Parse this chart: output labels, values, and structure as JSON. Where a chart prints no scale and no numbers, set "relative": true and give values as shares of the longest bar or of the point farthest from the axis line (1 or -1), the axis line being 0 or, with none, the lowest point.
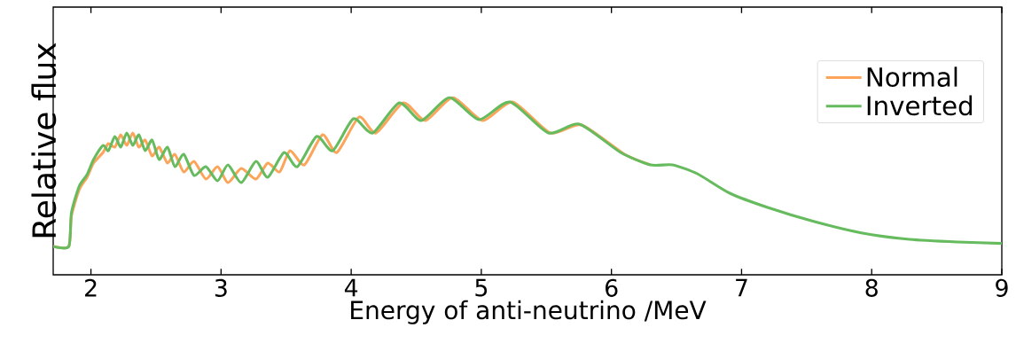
{
  "chart_data": {
    "type": "line",
    "relative": true,
    "xlabel": "Energy of anti-neutrino /MeV",
    "ylabel": "Relative flux",
    "xlim": [
      1.71,
      9
    ],
    "xticks": [
      2,
      3,
      4,
      5,
      6,
      7,
      8,
      9
    ],
    "tick_labels": "x",
    "legend": "top right",
    "marker": "none",
    "line_style": "solid",
    "grid": false,
    "series": [
      {
        "name": "Normal",
        "color": "#fca55a",
        "x": [
          1.71,
          1.83,
          1.85,
          1.91,
          1.97,
          2.02,
          2.093,
          2.134,
          2.184,
          2.229,
          2.275,
          2.322,
          2.368,
          2.417,
          2.47,
          2.524,
          2.588,
          2.645,
          2.713,
          2.792,
          2.883,
          2.973,
          3.053,
          3.155,
          3.268,
          3.359,
          3.45,
          3.53,
          3.64,
          3.78,
          3.89,
          4.06,
          4.19,
          4.4,
          4.57,
          4.78,
          5.01,
          5.24,
          5.53,
          5.77,
          6.1,
          6.3
        ],
        "values": [
          0.16,
          0.16,
          0.33,
          0.48,
          0.55,
          0.63,
          0.69,
          0.74,
          0.72,
          0.79,
          0.73,
          0.8,
          0.72,
          0.76,
          0.67,
          0.72,
          0.63,
          0.68,
          0.58,
          0.64,
          0.54,
          0.61,
          0.52,
          0.6,
          0.54,
          0.63,
          0.58,
          0.7,
          0.62,
          0.79,
          0.69,
          0.89,
          0.8,
          0.97,
          0.87,
          1.0,
          0.87,
          0.975,
          0.8,
          0.845,
          0.68,
          0.62
        ]
      },
      {
        "name": "Inverted",
        "color": "#66bb5e",
        "x": [
          1.71,
          1.83,
          1.85,
          1.91,
          1.97,
          2.02,
          2.093,
          2.134,
          2.184,
          2.229,
          2.275,
          2.322,
          2.368,
          2.417,
          2.47,
          2.524,
          2.588,
          2.645,
          2.713,
          2.792,
          2.883,
          2.973,
          3.053,
          3.155,
          3.268,
          3.359,
          3.484,
          3.586,
          3.734,
          3.858,
          4.017,
          4.165,
          4.369,
          4.539,
          4.755,
          4.982,
          5.22,
          5.515,
          5.753,
          6.071,
          6.3,
          6.47,
          6.66,
          6.91,
          7.2,
          7.56,
          7.93,
          8.29,
          8.66,
          9.0
        ],
        "values": [
          0.16,
          0.16,
          0.35,
          0.5,
          0.565,
          0.65,
          0.73,
          0.7,
          0.78,
          0.72,
          0.8,
          0.73,
          0.79,
          0.7,
          0.76,
          0.65,
          0.72,
          0.61,
          0.68,
          0.56,
          0.61,
          0.53,
          0.62,
          0.52,
          0.64,
          0.55,
          0.69,
          0.61,
          0.78,
          0.7,
          0.88,
          0.8,
          0.97,
          0.87,
          1.0,
          0.875,
          0.975,
          0.8,
          0.85,
          0.69,
          0.62,
          0.62,
          0.57,
          0.46,
          0.38,
          0.3,
          0.235,
          0.2,
          0.185,
          0.177
        ]
      }
    ]
  }
}
